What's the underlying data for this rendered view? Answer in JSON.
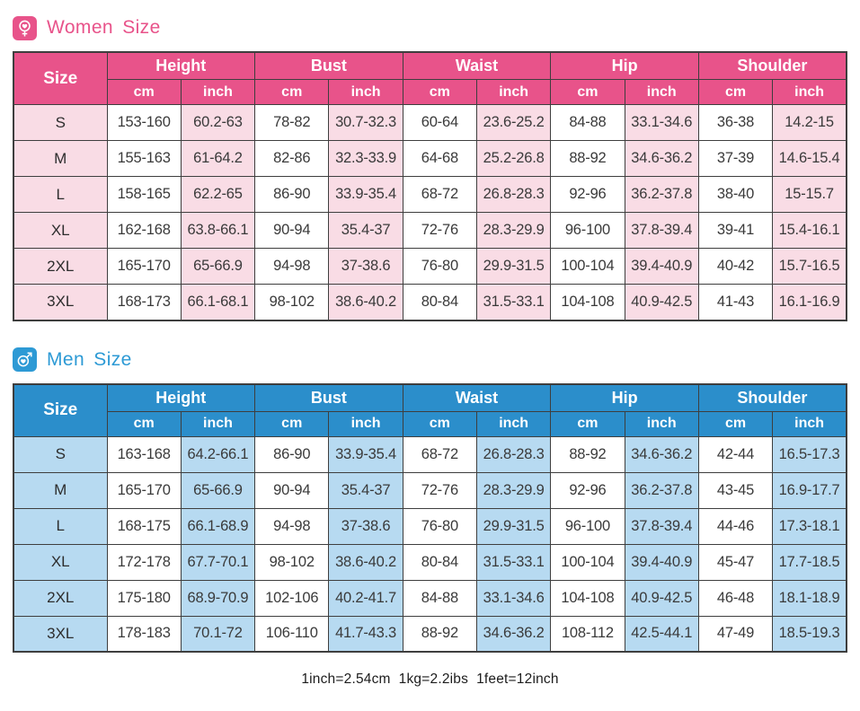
{
  "tables": [
    {
      "id": "women",
      "title": "Women Size",
      "icon": "female-heart-icon",
      "theme": {
        "accent": "#e8538a",
        "header_bg": "#e8538a",
        "light_bg": "#f9dce5"
      },
      "size_header": "Size",
      "groups": [
        "Height",
        "Bust",
        "Waist",
        "Hip",
        "Shoulder"
      ],
      "unit_headers": [
        "cm",
        "inch"
      ],
      "rows": [
        {
          "size": "S",
          "values": [
            "153-160",
            "60.2-63",
            "78-82",
            "30.7-32.3",
            "60-64",
            "23.6-25.2",
            "84-88",
            "33.1-34.6",
            "36-38",
            "14.2-15"
          ]
        },
        {
          "size": "M",
          "values": [
            "155-163",
            "61-64.2",
            "82-86",
            "32.3-33.9",
            "64-68",
            "25.2-26.8",
            "88-92",
            "34.6-36.2",
            "37-39",
            "14.6-15.4"
          ]
        },
        {
          "size": "L",
          "values": [
            "158-165",
            "62.2-65",
            "86-90",
            "33.9-35.4",
            "68-72",
            "26.8-28.3",
            "92-96",
            "36.2-37.8",
            "38-40",
            "15-15.7"
          ]
        },
        {
          "size": "XL",
          "values": [
            "162-168",
            "63.8-66.1",
            "90-94",
            "35.4-37",
            "72-76",
            "28.3-29.9",
            "96-100",
            "37.8-39.4",
            "39-41",
            "15.4-16.1"
          ]
        },
        {
          "size": "2XL",
          "values": [
            "165-170",
            "65-66.9",
            "94-98",
            "37-38.6",
            "76-80",
            "29.9-31.5",
            "100-104",
            "39.4-40.9",
            "40-42",
            "15.7-16.5"
          ]
        },
        {
          "size": "3XL",
          "values": [
            "168-173",
            "66.1-68.1",
            "98-102",
            "38.6-40.2",
            "80-84",
            "31.5-33.1",
            "104-108",
            "40.9-42.5",
            "41-43",
            "16.1-16.9"
          ]
        }
      ]
    },
    {
      "id": "men",
      "title": "Men Size",
      "icon": "male-heart-icon",
      "theme": {
        "accent": "#2d9ad5",
        "header_bg": "#2b8ecb",
        "light_bg": "#b7daf1"
      },
      "size_header": "Size",
      "groups": [
        "Height",
        "Bust",
        "Waist",
        "Hip",
        "Shoulder"
      ],
      "unit_headers": [
        "cm",
        "inch"
      ],
      "rows": [
        {
          "size": "S",
          "values": [
            "163-168",
            "64.2-66.1",
            "86-90",
            "33.9-35.4",
            "68-72",
            "26.8-28.3",
            "88-92",
            "34.6-36.2",
            "42-44",
            "16.5-17.3"
          ]
        },
        {
          "size": "M",
          "values": [
            "165-170",
            "65-66.9",
            "90-94",
            "35.4-37",
            "72-76",
            "28.3-29.9",
            "92-96",
            "36.2-37.8",
            "43-45",
            "16.9-17.7"
          ]
        },
        {
          "size": "L",
          "values": [
            "168-175",
            "66.1-68.9",
            "94-98",
            "37-38.6",
            "76-80",
            "29.9-31.5",
            "96-100",
            "37.8-39.4",
            "44-46",
            "17.3-18.1"
          ]
        },
        {
          "size": "XL",
          "values": [
            "172-178",
            "67.7-70.1",
            "98-102",
            "38.6-40.2",
            "80-84",
            "31.5-33.1",
            "100-104",
            "39.4-40.9",
            "45-47",
            "17.7-18.5"
          ]
        },
        {
          "size": "2XL",
          "values": [
            "175-180",
            "68.9-70.9",
            "102-106",
            "40.2-41.7",
            "84-88",
            "33.1-34.6",
            "104-108",
            "40.9-42.5",
            "46-48",
            "18.1-18.9"
          ]
        },
        {
          "size": "3XL",
          "values": [
            "178-183",
            "70.1-72",
            "106-110",
            "41.7-43.3",
            "88-92",
            "34.6-36.2",
            "108-112",
            "42.5-44.1",
            "47-49",
            "18.5-19.3"
          ]
        }
      ]
    }
  ],
  "footer": {
    "note": "1inch=2.54cm  1kg=2.2ibs  1feet=12inch"
  }
}
